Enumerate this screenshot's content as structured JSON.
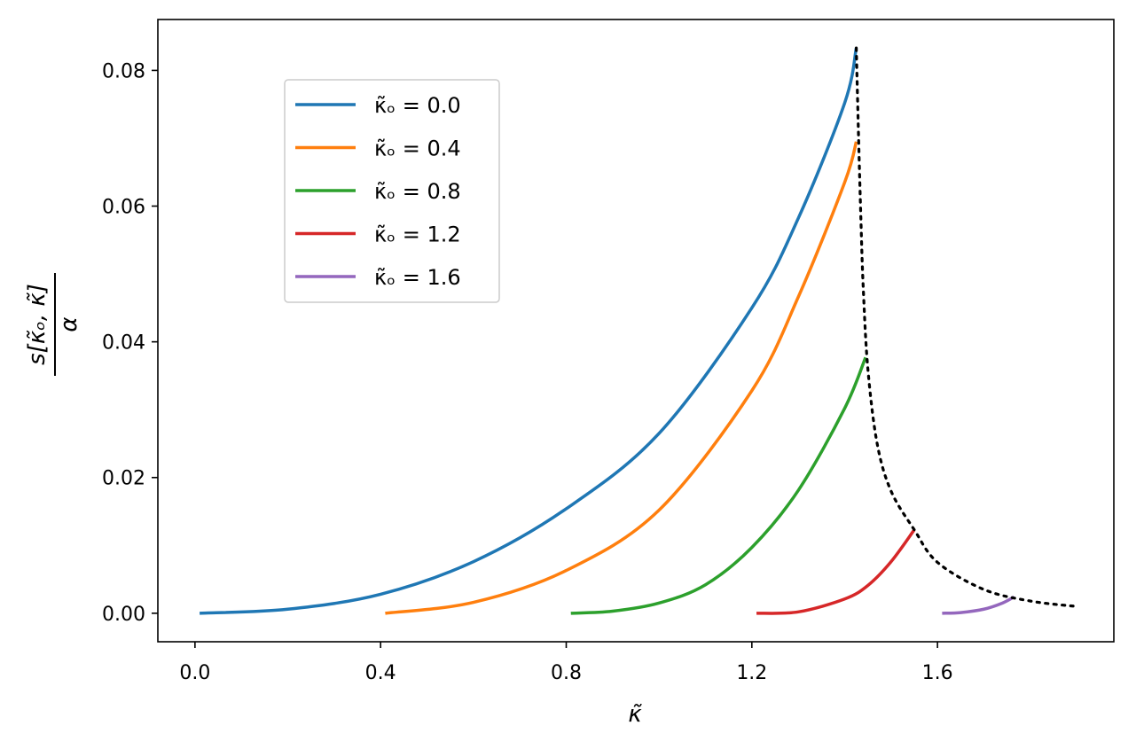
{
  "chart_data": {
    "type": "line",
    "title": "",
    "xlabel": "κ̃",
    "ylabel_numerator": "s[κ̃ₒ, κ̃]",
    "ylabel_denominator": "α",
    "xlim": [
      -0.08,
      1.98
    ],
    "ylim": [
      -0.0042,
      0.0875
    ],
    "xticks": [
      0.0,
      0.4,
      0.8,
      1.2,
      1.6
    ],
    "xtick_labels": [
      "0.0",
      "0.4",
      "0.8",
      "1.2",
      "1.6"
    ],
    "yticks": [
      0.0,
      0.02,
      0.04,
      0.06,
      0.08
    ],
    "ytick_labels": [
      "0.00",
      "0.02",
      "0.04",
      "0.06",
      "0.08"
    ],
    "grid": false,
    "legend_position": "upper-left",
    "series": [
      {
        "name": "κ̃ₒ = 0.0",
        "legend_label": "κ̃ₒ = 0.0",
        "color": "#1f77b4",
        "style": "solid",
        "x": [
          0.01,
          0.2,
          0.4,
          0.6,
          0.8,
          1.0,
          1.2,
          1.3,
          1.4,
          1.425
        ],
        "y": [
          0.0,
          0.0006,
          0.0028,
          0.0076,
          0.0154,
          0.0265,
          0.045,
          0.0582,
          0.0752,
          0.0833
        ]
      },
      {
        "name": "κ̃ₒ = 0.4",
        "legend_label": "κ̃ₒ = 0.4",
        "color": "#ff7f0e",
        "style": "solid",
        "x": [
          0.41,
          0.6,
          0.8,
          1.0,
          1.2,
          1.3,
          1.4,
          1.425
        ],
        "y": [
          0.0,
          0.0016,
          0.0063,
          0.0152,
          0.0328,
          0.0466,
          0.0635,
          0.0695
        ]
      },
      {
        "name": "κ̃ₒ = 0.8",
        "legend_label": "κ̃ₒ = 0.8",
        "color": "#2ca02c",
        "style": "solid",
        "x": [
          0.81,
          0.9,
          1.0,
          1.1,
          1.2,
          1.3,
          1.4,
          1.445
        ],
        "y": [
          0.0,
          0.0003,
          0.0015,
          0.0042,
          0.0097,
          0.0181,
          0.0302,
          0.0377
        ]
      },
      {
        "name": "κ̃ₒ = 1.2",
        "legend_label": "κ̃ₒ = 1.2",
        "color": "#d62728",
        "style": "solid",
        "x": [
          1.21,
          1.3,
          1.4,
          1.45,
          1.5,
          1.55
        ],
        "y": [
          0.0,
          0.0002,
          0.0021,
          0.0041,
          0.0076,
          0.0123
        ]
      },
      {
        "name": "κ̃ₒ = 1.6",
        "legend_label": "κ̃ₒ = 1.6",
        "color": "#9467bd",
        "style": "solid",
        "x": [
          1.61,
          1.65,
          1.7,
          1.74,
          1.765
        ],
        "y": [
          0.0,
          0.0001,
          0.0006,
          0.0015,
          0.0024
        ]
      },
      {
        "name": "",
        "color": "#000000",
        "style": "dotted",
        "x": [
          1.425,
          1.43,
          1.435,
          1.44,
          1.45,
          1.47,
          1.5,
          1.55,
          1.6,
          1.7,
          1.8,
          1.9
        ],
        "y": [
          0.0833,
          0.07,
          0.058,
          0.048,
          0.036,
          0.025,
          0.018,
          0.0123,
          0.0075,
          0.0035,
          0.0018,
          0.001
        ]
      }
    ]
  }
}
